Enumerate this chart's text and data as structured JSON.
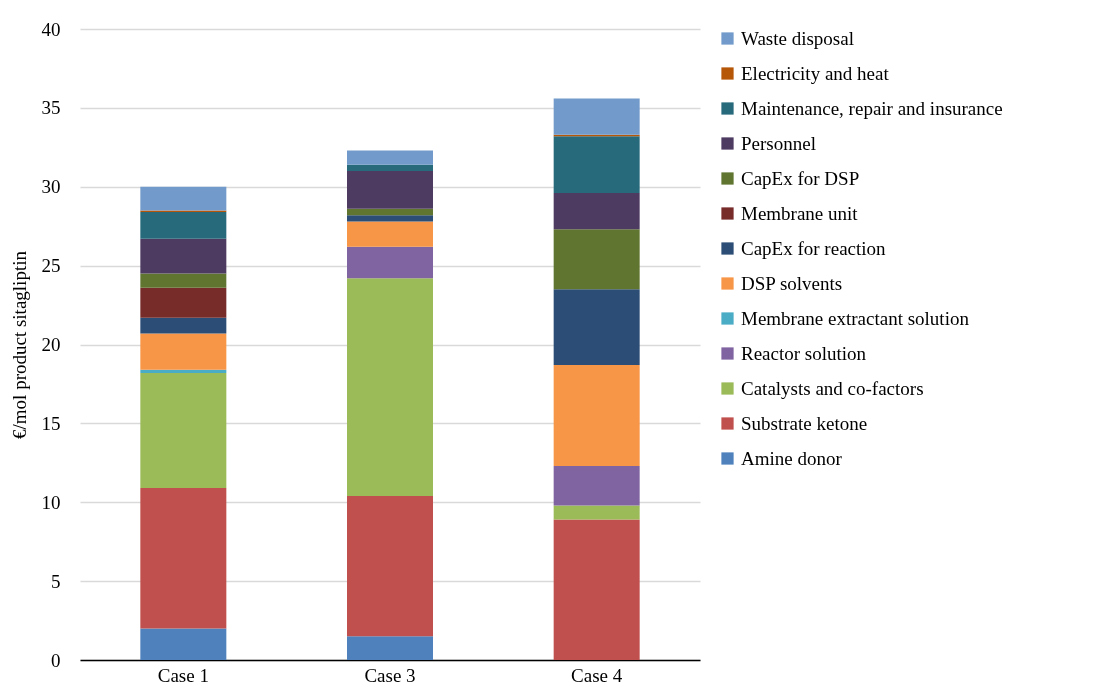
{
  "chart_data": {
    "type": "bar",
    "stacked": true,
    "ylabel": "€/mol product sitagliptin",
    "categories": [
      "Case 1",
      "Case 3",
      "Case 4"
    ],
    "ylim": [
      0,
      40
    ],
    "yticks": [
      0,
      5,
      10,
      15,
      20,
      25,
      30,
      35,
      40
    ],
    "grid": "y",
    "legend": "right",
    "series": [
      {
        "name": "Amine donor",
        "color": "#4f81bd",
        "values": [
          2.0,
          1.5,
          0
        ]
      },
      {
        "name": "Substrate ketone",
        "color": "#c0504d",
        "values": [
          8.9,
          8.9,
          8.9
        ]
      },
      {
        "name": "Catalysts and co-factors",
        "color": "#9bbb59",
        "values": [
          7.3,
          13.8,
          0.9
        ]
      },
      {
        "name": "Reactor solution",
        "color": "#8064a2",
        "values": [
          0,
          2.0,
          2.5
        ]
      },
      {
        "name": "Membrane extractant solution",
        "color": "#4bacc6",
        "values": [
          0.2,
          0,
          0
        ]
      },
      {
        "name": "DSP solvents",
        "color": "#f79646",
        "values": [
          2.3,
          1.6,
          6.4
        ]
      },
      {
        "name": "CapEx for reaction",
        "color": "#2c4d75",
        "values": [
          1.0,
          0.4,
          4.8
        ]
      },
      {
        "name": "Membrane unit",
        "color": "#772c2a",
        "values": [
          1.9,
          0,
          0
        ]
      },
      {
        "name": "CapEx for DSP",
        "color": "#5f7530",
        "values": [
          0.9,
          0.4,
          3.8
        ]
      },
      {
        "name": "Personnel",
        "color": "#4d3b62",
        "values": [
          2.2,
          2.4,
          2.3
        ]
      },
      {
        "name": "Maintenance, repair and insurance",
        "color": "#276a7c",
        "values": [
          1.7,
          0.4,
          3.6
        ]
      },
      {
        "name": "Electricity and heat",
        "color": "#b65708",
        "values": [
          0.1,
          0,
          0.1
        ]
      },
      {
        "name": "Waste disposal",
        "color": "#729aca",
        "values": [
          1.5,
          0.9,
          2.3
        ]
      }
    ]
  }
}
